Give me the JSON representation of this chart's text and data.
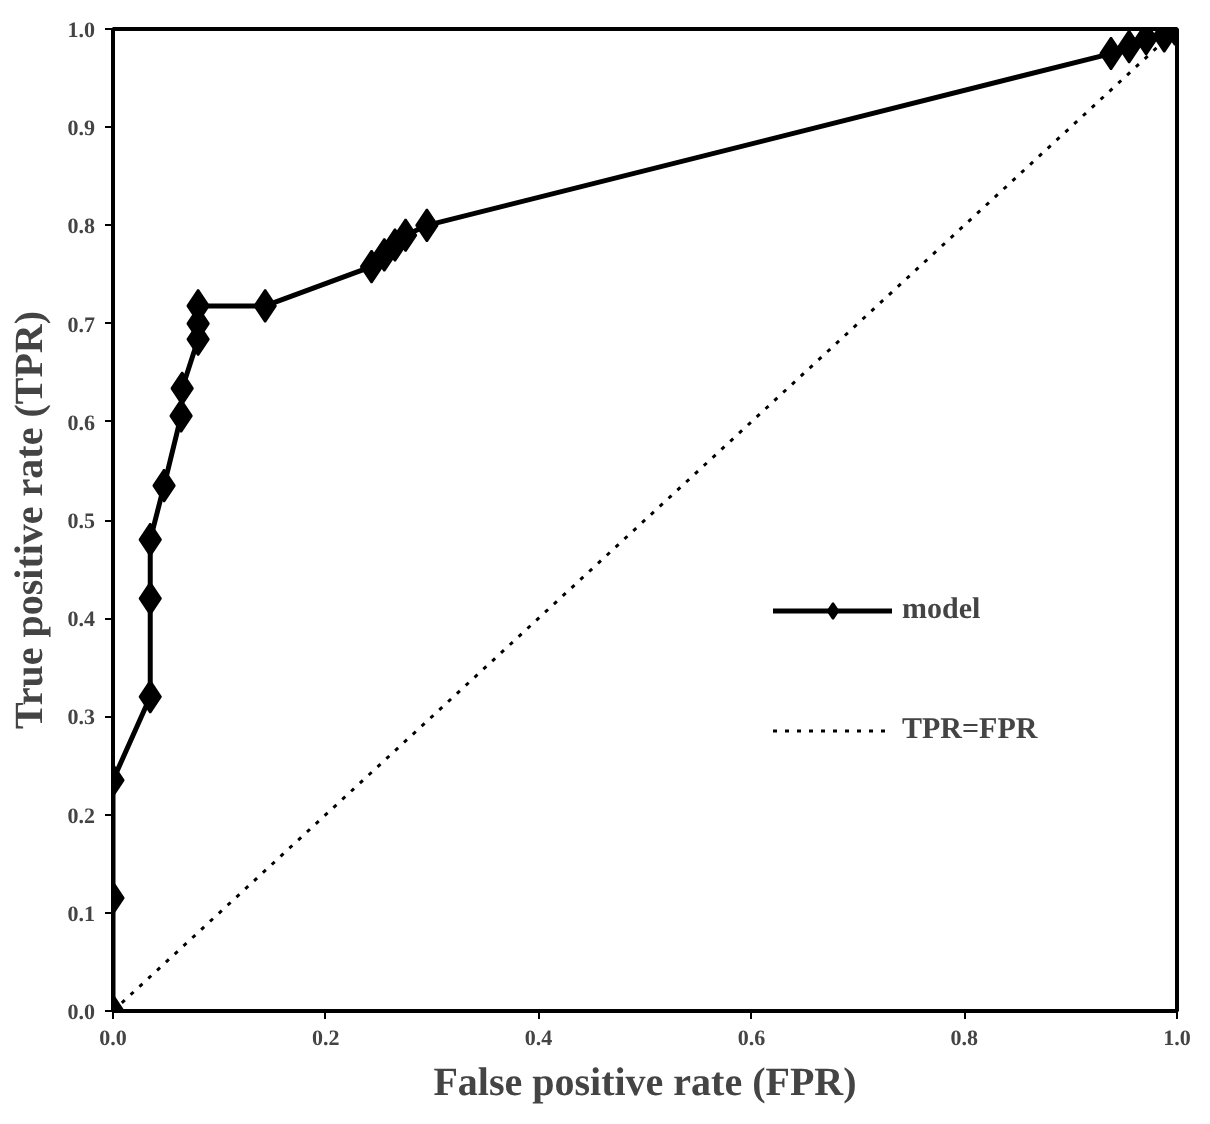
{
  "chart_data": {
    "type": "line",
    "xlabel": "False positive rate (FPR)",
    "ylabel": "True positive rate (TPR)",
    "series": [
      {
        "name": "model",
        "color": "#000000",
        "marker": "diamond",
        "line_style": "solid",
        "x": [
          0,
          0,
          0,
          0.035,
          0.035,
          0.035,
          0.048,
          0.064,
          0.065,
          0.08,
          0.08,
          0.08,
          0.143,
          0.243,
          0.255,
          0.265,
          0.275,
          0.295,
          0.938,
          0.955,
          0.971,
          0.988,
          0.998
        ],
        "values": [
          0,
          0.115,
          0.235,
          0.32,
          0.42,
          0.48,
          0.535,
          0.606,
          0.634,
          0.684,
          0.7,
          0.718,
          0.718,
          0.758,
          0.77,
          0.78,
          0.79,
          0.8,
          0.975,
          0.982,
          0.99,
          0.993,
          1.0
        ]
      },
      {
        "name": "TPR=FPR",
        "color": "#000000",
        "marker": "none",
        "line_style": "dotted",
        "x": [
          0,
          1
        ],
        "values": [
          0,
          1
        ]
      }
    ],
    "xlim": [
      0,
      1
    ],
    "ylim": [
      0,
      1
    ],
    "xticks": [
      {
        "value": 0,
        "label": "0.0"
      },
      0.2,
      0.4,
      0.6,
      0.8,
      {
        "value": 1,
        "label": "1.0"
      }
    ],
    "yticks": [
      {
        "value": 0,
        "label": "0.0"
      },
      0.1,
      0.2,
      0.3,
      0.4,
      0.5,
      0.6,
      0.7,
      0.8,
      0.9,
      {
        "value": 1,
        "label": "1.0"
      }
    ],
    "grid": false,
    "legend": "right"
  }
}
